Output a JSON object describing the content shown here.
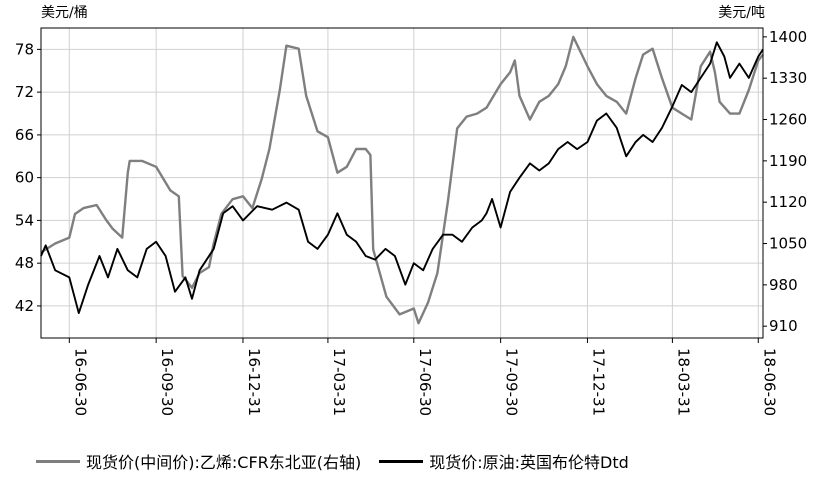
{
  "chart_data": {
    "type": "line",
    "left_axis_unit": "美元/桶",
    "right_axis_unit": "美元/吨",
    "left_ticks": [
      42,
      48,
      54,
      60,
      66,
      72,
      78
    ],
    "right_ticks": [
      910,
      980,
      1050,
      1120,
      1190,
      1260,
      1330,
      1400
    ],
    "left_ylim": [
      37.5,
      81
    ],
    "right_ylim": [
      890,
      1415
    ],
    "x_ticks": [
      "16-06-30",
      "16-09-30",
      "16-12-31",
      "17-03-31",
      "17-06-30",
      "17-09-30",
      "17-12-31",
      "18-03-31",
      "18-06-30"
    ],
    "grid": true,
    "legend_position": "bottom",
    "series": [
      {
        "name": "现货价(中间价):乙烯:CFR东北亚(右轴)",
        "axis": "right",
        "color": "#7f7f7f",
        "x": [
          "2016-05-31",
          "2016-06-15",
          "2016-06-30",
          "2016-07-06",
          "2016-07-15",
          "2016-07-29",
          "2016-08-08",
          "2016-08-15",
          "2016-08-25",
          "2016-08-31",
          "2016-09-02",
          "2016-09-15",
          "2016-09-30",
          "2016-10-15",
          "2016-10-24",
          "2016-10-28",
          "2016-11-07",
          "2016-11-15",
          "2016-11-25",
          "2016-11-30",
          "2016-12-08",
          "2016-12-20",
          "2016-12-31",
          "2017-01-10",
          "2017-01-20",
          "2017-01-28",
          "2017-02-08",
          "2017-02-15",
          "2017-02-28",
          "2017-03-08",
          "2017-03-20",
          "2017-03-31",
          "2017-04-10",
          "2017-04-20",
          "2017-04-30",
          "2017-05-10",
          "2017-05-15",
          "2017-05-18",
          "2017-06-01",
          "2017-06-15",
          "2017-06-30",
          "2017-07-05",
          "2017-07-15",
          "2017-07-25",
          "2017-08-05",
          "2017-08-15",
          "2017-08-25",
          "2017-09-05",
          "2017-09-15",
          "2017-09-30",
          "2017-10-10",
          "2017-10-15",
          "2017-10-20",
          "2017-10-31",
          "2017-11-10",
          "2017-11-20",
          "2017-11-30",
          "2017-12-08",
          "2017-12-16",
          "2017-12-31",
          "2018-01-10",
          "2018-01-20",
          "2018-01-31",
          "2018-02-10",
          "2018-02-20",
          "2018-02-28",
          "2018-03-10",
          "2018-03-20",
          "2018-03-31",
          "2018-04-10",
          "2018-04-20",
          "2018-04-30",
          "2018-05-10",
          "2018-05-15",
          "2018-05-20",
          "2018-05-31",
          "2018-06-10",
          "2018-06-20",
          "2018-06-30",
          "2018-07-05"
        ],
        "values": [
          1035,
          1050,
          1060,
          1100,
          1110,
          1115,
          1090,
          1075,
          1060,
          1170,
          1190,
          1190,
          1180,
          1140,
          1130,
          995,
          975,
          1000,
          1010,
          1050,
          1100,
          1125,
          1130,
          1110,
          1160,
          1210,
          1310,
          1385,
          1380,
          1300,
          1240,
          1230,
          1170,
          1180,
          1210,
          1210,
          1200,
          1040,
          960,
          930,
          940,
          915,
          950,
          1000,
          1120,
          1245,
          1265,
          1270,
          1280,
          1320,
          1340,
          1360,
          1300,
          1260,
          1290,
          1300,
          1320,
          1350,
          1400,
          1350,
          1320,
          1300,
          1290,
          1270,
          1330,
          1370,
          1380,
          1330,
          1280,
          1270,
          1260,
          1350,
          1375,
          1340,
          1290,
          1270,
          1270,
          1310,
          1360,
          1370
        ]
      },
      {
        "name": "现货价:原油:英国布伦特Dtd",
        "axis": "left",
        "color": "#000000",
        "x": [
          "2016-05-31",
          "2016-06-05",
          "2016-06-15",
          "2016-06-30",
          "2016-07-10",
          "2016-07-20",
          "2016-08-01",
          "2016-08-10",
          "2016-08-20",
          "2016-08-31",
          "2016-09-10",
          "2016-09-20",
          "2016-09-30",
          "2016-10-10",
          "2016-10-20",
          "2016-10-31",
          "2016-11-07",
          "2016-11-15",
          "2016-11-30",
          "2016-12-10",
          "2016-12-20",
          "2016-12-31",
          "2017-01-15",
          "2017-01-31",
          "2017-02-15",
          "2017-02-28",
          "2017-03-10",
          "2017-03-20",
          "2017-03-31",
          "2017-04-10",
          "2017-04-20",
          "2017-04-30",
          "2017-05-10",
          "2017-05-20",
          "2017-05-31",
          "2017-06-10",
          "2017-06-21",
          "2017-06-30",
          "2017-07-10",
          "2017-07-20",
          "2017-07-31",
          "2017-08-10",
          "2017-08-20",
          "2017-08-31",
          "2017-09-10",
          "2017-09-15",
          "2017-09-21",
          "2017-09-30",
          "2017-10-10",
          "2017-10-20",
          "2017-10-31",
          "2017-11-10",
          "2017-11-20",
          "2017-11-30",
          "2017-12-10",
          "2017-12-20",
          "2017-12-31",
          "2018-01-10",
          "2018-01-20",
          "2018-01-31",
          "2018-02-10",
          "2018-02-20",
          "2018-02-28",
          "2018-03-10",
          "2018-03-20",
          "2018-03-31",
          "2018-04-10",
          "2018-04-20",
          "2018-04-30",
          "2018-05-10",
          "2018-05-17",
          "2018-05-25",
          "2018-05-31",
          "2018-06-10",
          "2018-06-20",
          "2018-06-30",
          "2018-07-05"
        ],
        "values": [
          49,
          50.5,
          47,
          46,
          41,
          45,
          49,
          46,
          50,
          47,
          46,
          50,
          51,
          49,
          44,
          46,
          43,
          47,
          50,
          55,
          56,
          54,
          56,
          55.5,
          56.5,
          55.5,
          51,
          50,
          52,
          55,
          52,
          51,
          49,
          48.5,
          50,
          49,
          45,
          48,
          47,
          50,
          52,
          52,
          51,
          53,
          54,
          55,
          57,
          53,
          58,
          60,
          62,
          61,
          62,
          64,
          65,
          64,
          65,
          68,
          69,
          67,
          63,
          65,
          66,
          65,
          67,
          70,
          73,
          72,
          74,
          76,
          79,
          77,
          74,
          76,
          74,
          77,
          78
        ]
      }
    ]
  },
  "legend": {
    "item1": "现货价(中间价):乙烯:CFR东北亚(右轴)",
    "item2": "现货价:原油:英国布伦特Dtd"
  }
}
